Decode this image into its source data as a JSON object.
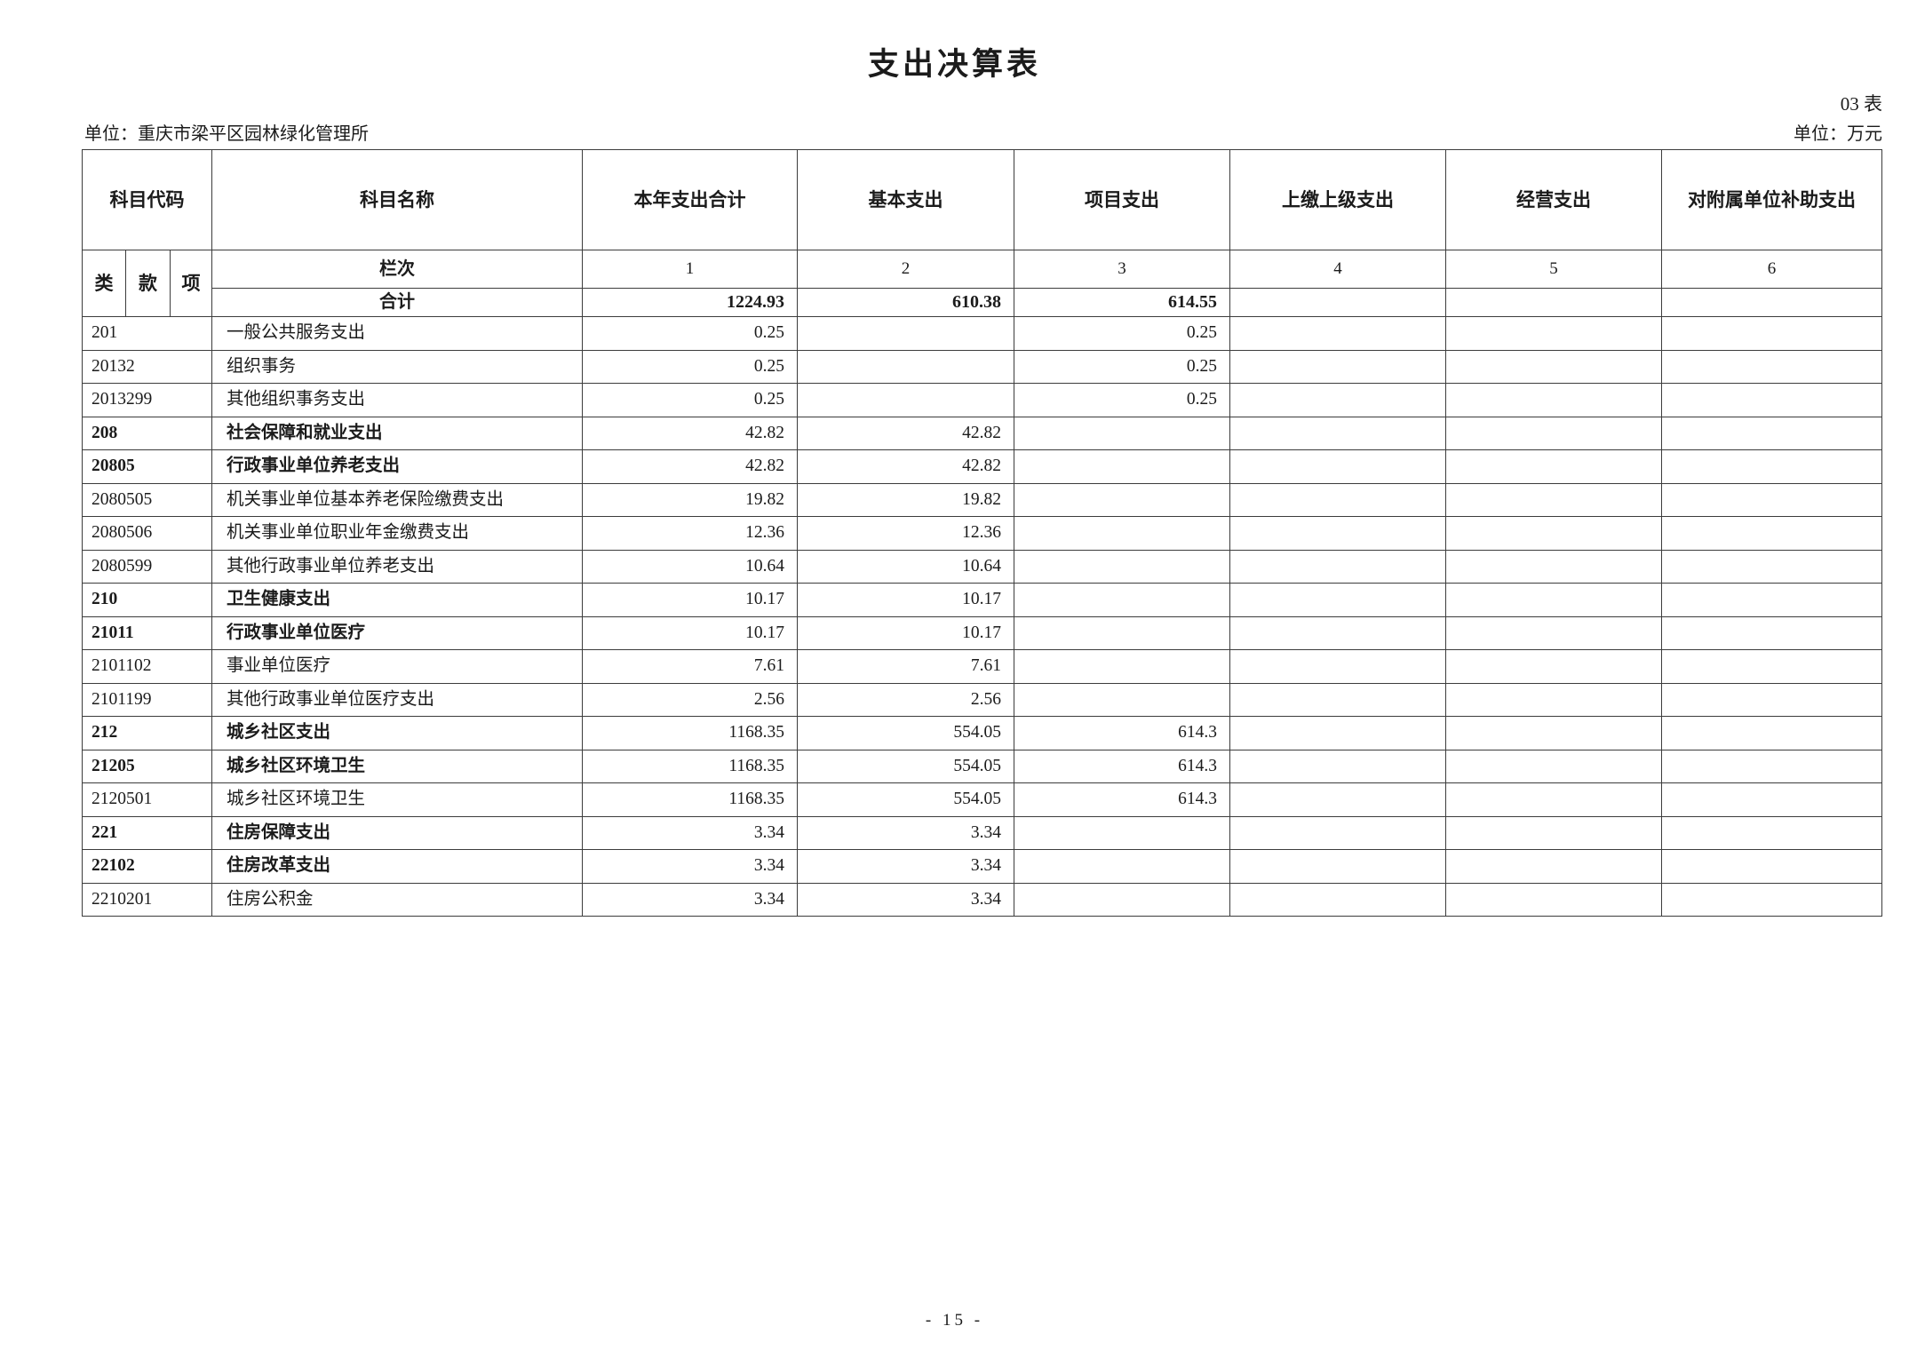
{
  "page": {
    "title": "支出决算表",
    "table_no": "03 表",
    "unit_name_label": "单位：重庆市梁平区园林绿化管理所",
    "unit_of_measure_label": "单位：万元",
    "page_number": "- 15 -"
  },
  "colors": {
    "ink": "#1b1b1b",
    "border": "#3c3c3c",
    "background": "#ffffff"
  },
  "table": {
    "headers": {
      "code": "科目代码",
      "code_sub": [
        "类",
        "款",
        "项"
      ],
      "name": "科目名称",
      "value_cols": [
        "本年支出合计",
        "基本支出",
        "项目支出",
        "上缴上级支出",
        "经营支出",
        "对附属单位补助支出"
      ]
    },
    "lanci_label": "栏次",
    "lanci_numbers": [
      "1",
      "2",
      "3",
      "4",
      "5",
      "6"
    ],
    "total_label": "合计",
    "total_values": [
      "1224.93",
      "610.38",
      "614.55",
      "",
      "",
      ""
    ],
    "rows": [
      {
        "code": "201",
        "name": "一般公共服务支出",
        "values": [
          "0.25",
          "",
          "0.25",
          "",
          "",
          ""
        ],
        "bold": false
      },
      {
        "code": "20132",
        "name": "组织事务",
        "values": [
          "0.25",
          "",
          "0.25",
          "",
          "",
          ""
        ],
        "bold": false
      },
      {
        "code": "2013299",
        "name": "其他组织事务支出",
        "values": [
          "0.25",
          "",
          "0.25",
          "",
          "",
          ""
        ],
        "bold": false
      },
      {
        "code": "208",
        "name": "社会保障和就业支出",
        "values": [
          "42.82",
          "42.82",
          "",
          "",
          "",
          ""
        ],
        "bold": true
      },
      {
        "code": "20805",
        "name": "行政事业单位养老支出",
        "values": [
          "42.82",
          "42.82",
          "",
          "",
          "",
          ""
        ],
        "bold": true
      },
      {
        "code": "2080505",
        "name": "机关事业单位基本养老保险缴费支出",
        "values": [
          "19.82",
          "19.82",
          "",
          "",
          "",
          ""
        ],
        "bold": false
      },
      {
        "code": "2080506",
        "name": "机关事业单位职业年金缴费支出",
        "values": [
          "12.36",
          "12.36",
          "",
          "",
          "",
          ""
        ],
        "bold": false
      },
      {
        "code": "2080599",
        "name": "其他行政事业单位养老支出",
        "values": [
          "10.64",
          "10.64",
          "",
          "",
          "",
          ""
        ],
        "bold": false
      },
      {
        "code": "210",
        "name": "卫生健康支出",
        "values": [
          "10.17",
          "10.17",
          "",
          "",
          "",
          ""
        ],
        "bold": true
      },
      {
        "code": "21011",
        "name": "行政事业单位医疗",
        "values": [
          "10.17",
          "10.17",
          "",
          "",
          "",
          ""
        ],
        "bold": true
      },
      {
        "code": "2101102",
        "name": "事业单位医疗",
        "values": [
          "7.61",
          "7.61",
          "",
          "",
          "",
          ""
        ],
        "bold": false
      },
      {
        "code": "2101199",
        "name": "其他行政事业单位医疗支出",
        "values": [
          "2.56",
          "2.56",
          "",
          "",
          "",
          ""
        ],
        "bold": false
      },
      {
        "code": "212",
        "name": "城乡社区支出",
        "values": [
          "1168.35",
          "554.05",
          "614.3",
          "",
          "",
          ""
        ],
        "bold": true
      },
      {
        "code": "21205",
        "name": "城乡社区环境卫生",
        "values": [
          "1168.35",
          "554.05",
          "614.3",
          "",
          "",
          ""
        ],
        "bold": true
      },
      {
        "code": "2120501",
        "name": "城乡社区环境卫生",
        "values": [
          "1168.35",
          "554.05",
          "614.3",
          "",
          "",
          ""
        ],
        "bold": false
      },
      {
        "code": "221",
        "name": "住房保障支出",
        "values": [
          "3.34",
          "3.34",
          "",
          "",
          "",
          ""
        ],
        "bold": true
      },
      {
        "code": "22102",
        "name": "住房改革支出",
        "values": [
          "3.34",
          "3.34",
          "",
          "",
          "",
          ""
        ],
        "bold": true
      },
      {
        "code": "2210201",
        "name": "住房公积金",
        "values": [
          "3.34",
          "3.34",
          "",
          "",
          "",
          ""
        ],
        "bold": false
      }
    ]
  }
}
